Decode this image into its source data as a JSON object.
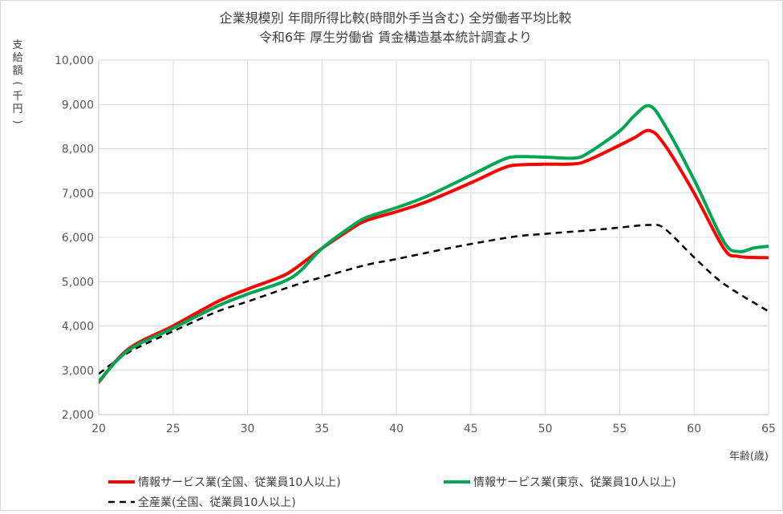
{
  "chart_data": {
    "type": "line",
    "title": "企業規模別 年間所得比較(時間外手当含む) 全労働者平均比較",
    "subtitle": "令和6年 厚生労働省 賃金構造基本統計調査より",
    "ylabel": "支給額(千円)",
    "xlabel": "年齢(歳)",
    "xlim": [
      20,
      65
    ],
    "ylim": [
      2000,
      10000
    ],
    "xticks": [
      20,
      25,
      30,
      35,
      40,
      45,
      50,
      55,
      60,
      65
    ],
    "yticks": [
      2000,
      3000,
      4000,
      5000,
      6000,
      7000,
      8000,
      9000,
      10000
    ],
    "ytick_labels": [
      "2,000",
      "3,000",
      "4,000",
      "5,000",
      "6,000",
      "7,000",
      "8,000",
      "9,000",
      "10,000"
    ],
    "grid": true,
    "legend_position": "bottom",
    "series": [
      {
        "name": "情報サービス業(全国、従業員10人以上)",
        "color": "#ff0000",
        "dash": "solid",
        "points": [
          [
            20,
            2730
          ],
          [
            22,
            3480
          ],
          [
            25,
            4000
          ],
          [
            28,
            4550
          ],
          [
            30,
            4830
          ],
          [
            32,
            5080
          ],
          [
            33,
            5250
          ],
          [
            35,
            5750
          ],
          [
            37,
            6200
          ],
          [
            38,
            6380
          ],
          [
            40,
            6580
          ],
          [
            42,
            6800
          ],
          [
            45,
            7230
          ],
          [
            47,
            7540
          ],
          [
            48,
            7630
          ],
          [
            50,
            7650
          ],
          [
            52,
            7660
          ],
          [
            53,
            7760
          ],
          [
            55,
            8080
          ],
          [
            56,
            8250
          ],
          [
            57,
            8410
          ],
          [
            58,
            8100
          ],
          [
            60,
            7000
          ],
          [
            62,
            5750
          ],
          [
            63,
            5570
          ],
          [
            65,
            5540
          ]
        ]
      },
      {
        "name": "情報サービス業(東京、従業員10人以上)",
        "color": "#00a651",
        "dash": "solid",
        "points": [
          [
            20,
            2750
          ],
          [
            22,
            3450
          ],
          [
            25,
            3950
          ],
          [
            28,
            4450
          ],
          [
            30,
            4720
          ],
          [
            33,
            5100
          ],
          [
            35,
            5750
          ],
          [
            37,
            6250
          ],
          [
            38,
            6450
          ],
          [
            40,
            6670
          ],
          [
            42,
            6920
          ],
          [
            45,
            7400
          ],
          [
            47,
            7730
          ],
          [
            48,
            7820
          ],
          [
            50,
            7810
          ],
          [
            52,
            7790
          ],
          [
            53,
            7930
          ],
          [
            55,
            8400
          ],
          [
            56,
            8750
          ],
          [
            57,
            8970
          ],
          [
            58,
            8550
          ],
          [
            60,
            7300
          ],
          [
            62,
            5900
          ],
          [
            63,
            5680
          ],
          [
            64,
            5760
          ],
          [
            65,
            5800
          ]
        ]
      },
      {
        "name": "全産業(全国、従業員10人以上)",
        "color": "#000000",
        "dash": "dashed",
        "points": [
          [
            20,
            2920
          ],
          [
            22,
            3400
          ],
          [
            25,
            3880
          ],
          [
            28,
            4330
          ],
          [
            30,
            4550
          ],
          [
            33,
            4900
          ],
          [
            35,
            5100
          ],
          [
            38,
            5380
          ],
          [
            40,
            5510
          ],
          [
            43,
            5720
          ],
          [
            45,
            5850
          ],
          [
            48,
            6020
          ],
          [
            50,
            6080
          ],
          [
            53,
            6160
          ],
          [
            55,
            6220
          ],
          [
            57,
            6280
          ],
          [
            58,
            6200
          ],
          [
            60,
            5550
          ],
          [
            62,
            4950
          ],
          [
            65,
            4330
          ]
        ]
      }
    ]
  }
}
